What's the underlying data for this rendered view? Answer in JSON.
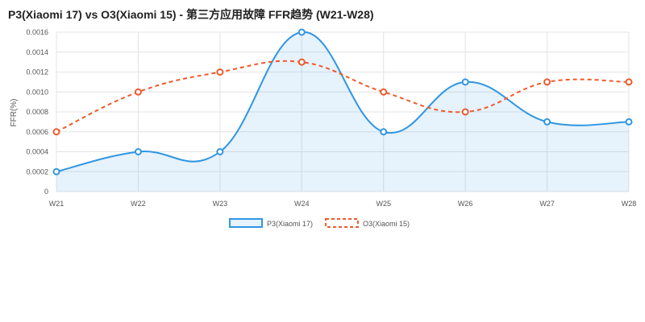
{
  "chart_data": {
    "type": "line",
    "title": "P3(Xiaomi 17) vs O3(Xiaomi 15) - 第三方应用故障 FFR趋势 (W21-W28)",
    "xlabel": "",
    "ylabel": "FFR(%)",
    "categories": [
      "W21",
      "W22",
      "W23",
      "W24",
      "W25",
      "W26",
      "W27",
      "W28"
    ],
    "ylim": [
      0,
      0.0016
    ],
    "yticks": [
      "0",
      "0.0002",
      "0.0004",
      "0.0006",
      "0.0008",
      "0.0010",
      "0.0012",
      "0.0014",
      "0.0016"
    ],
    "grid": true,
    "legend_position": "bottom",
    "series": [
      {
        "name": "P3(Xiaomi 17)",
        "values": [
          0.0002,
          0.0004,
          0.0004,
          0.0016,
          0.0006,
          0.0011,
          0.0007,
          0.0007
        ],
        "color": "#2f96e3",
        "style": "solid",
        "filled": true
      },
      {
        "name": "O3(Xiaomi 15)",
        "values": [
          0.0006,
          0.001,
          0.0012,
          0.0013,
          0.001,
          0.0008,
          0.0011,
          0.0011
        ],
        "color": "#ee5a2c",
        "style": "dashed",
        "filled": false
      }
    ]
  }
}
